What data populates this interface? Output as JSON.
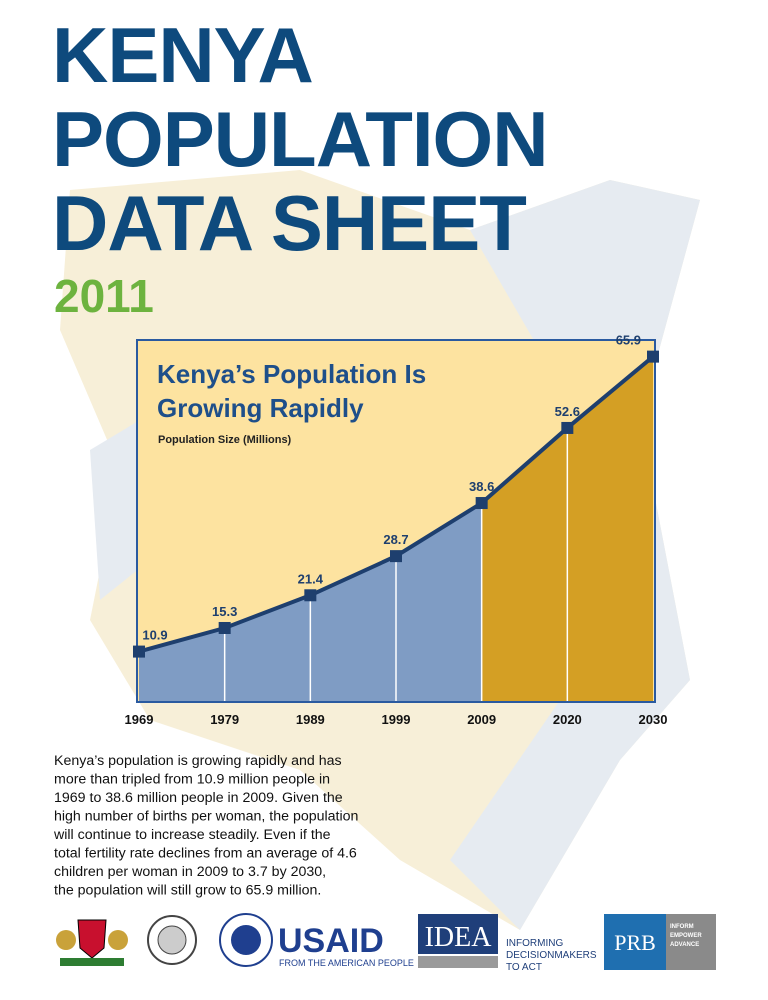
{
  "header": {
    "lines": [
      "KENYA",
      "POPULATION",
      "DATA SHEET"
    ],
    "year": "2011"
  },
  "chart_data": {
    "type": "area",
    "title": [
      "Kenya’s Population Is",
      "Growing Rapidly"
    ],
    "y_label": "Population Size (Millions)",
    "categories": [
      "1969",
      "1979",
      "1989",
      "1999",
      "2009",
      "2020",
      "2030"
    ],
    "values": [
      10.9,
      15.3,
      21.4,
      28.7,
      38.6,
      52.6,
      65.9
    ],
    "line_color": "#1e3f6e",
    "segment_colors": [
      "#7f9cc4",
      "#7f9cc4",
      "#7f9cc4",
      "#7f9cc4",
      "#d49f24",
      "#d49f24"
    ],
    "background": "#fde3a0",
    "ylim": [
      1.5,
      69
    ]
  },
  "body": {
    "lines": [
      "Kenya’s population is growing rapidly and has",
      "more than tripled from 10.9 million people in",
      "1969 to 38.6 million people in 2009. Given the",
      "high number of births per woman, the population",
      "will continue to increase steadily. Even if the",
      "total fertility rate declines from an average of 4.6",
      "children per woman in 2009 to 3.7 by 2030,",
      "the population will still grow to 65.9 million."
    ]
  },
  "logos": {
    "usaid": "USAID",
    "usaid_tagline": "FROM THE AMERICAN PEOPLE",
    "idea": "IDEA",
    "idea_tagline": [
      "INFORMING",
      "DECISIONMAKERS",
      "TO ACT"
    ],
    "prb": "PRB",
    "prb_tagline": [
      "INFORM",
      "EMPOWER",
      "ADVANCE"
    ]
  }
}
